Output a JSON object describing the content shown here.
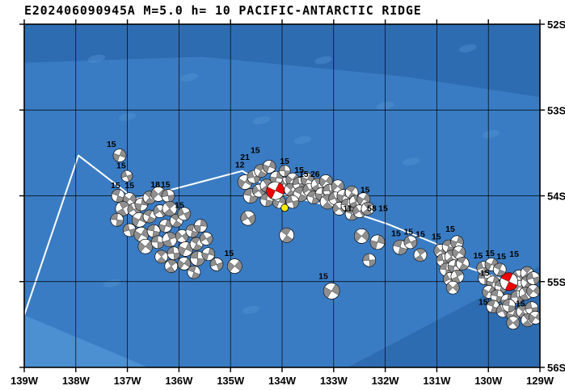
{
  "title": "E202406090945A M=5.0 h= 10 PACIFIC-ANTARCTIC RIDGE",
  "map": {
    "lon_labels": [
      "139W",
      "138W",
      "137W",
      "136W",
      "135W",
      "134W",
      "133W",
      "132W",
      "131W",
      "130W",
      "129W"
    ],
    "lon_degs": [
      139,
      138,
      137,
      136,
      135,
      134,
      133,
      132,
      131,
      130,
      129
    ],
    "lat_labels": [
      "52S",
      "53S",
      "54S",
      "55S",
      "56S"
    ],
    "lat_degs": [
      52,
      53,
      54,
      55,
      56
    ],
    "colors": {
      "ocean": "#3a7cc4",
      "ocean_dark": "#2e6cb2",
      "ocean_light": "#4c90d2",
      "blob": "#5a9ad8",
      "ball_fill": "#8f8f8f",
      "ball_highlight": "#ee0000",
      "station": "#ffee00",
      "boundary": "#ffffff",
      "grid": "#000000"
    },
    "bands": [
      {
        "color": "#2e6cb2",
        "pts": [
          [
            139,
            52
          ],
          [
            129,
            52
          ],
          [
            129,
            52.85
          ],
          [
            131.63,
            52.61
          ],
          [
            135.55,
            52.38
          ],
          [
            139,
            52.45
          ]
        ]
      },
      {
        "color": "#2e6cb2",
        "pts": [
          [
            132.73,
            56
          ],
          [
            129,
            56
          ],
          [
            129,
            54.82
          ]
        ]
      },
      {
        "color": "#4c90d2",
        "pts": [
          [
            139,
            56
          ],
          [
            139,
            55.39
          ],
          [
            136.6,
            56
          ]
        ]
      }
    ],
    "blobs": [
      [
        137.6,
        52.4
      ],
      [
        135.8,
        52.62
      ],
      [
        133.2,
        52.42
      ],
      [
        130.4,
        52.28
      ],
      [
        137.0,
        53.08
      ],
      [
        134.4,
        53.12
      ],
      [
        132.0,
        52.95
      ],
      [
        129.95,
        53.28
      ],
      [
        137.3,
        55.02
      ],
      [
        134.6,
        55.33
      ],
      [
        131.5,
        53.6
      ],
      [
        133.6,
        53.35
      ]
    ],
    "boundary_line": [
      [
        139.0,
        55.39
      ],
      [
        137.95,
        53.53
      ],
      [
        136.85,
        54.04
      ],
      [
        134.77,
        53.71
      ],
      [
        134.06,
        53.98
      ],
      [
        132.89,
        54.14
      ],
      [
        131.95,
        54.33
      ],
      [
        131.01,
        54.56
      ],
      [
        130.43,
        54.83
      ],
      [
        129.44,
        55.03
      ],
      [
        129.0,
        55.11
      ]
    ],
    "events": [
      [
        137.15,
        53.53,
        8,
        20
      ],
      [
        137.01,
        53.77,
        7,
        70
      ],
      [
        137.18,
        54.0,
        8,
        110
      ],
      [
        136.96,
        54.04,
        8,
        35
      ],
      [
        137.09,
        54.15,
        9,
        150
      ],
      [
        136.87,
        54.16,
        8,
        60
      ],
      [
        137.2,
        54.28,
        8,
        95
      ],
      [
        136.73,
        54.1,
        8,
        10
      ],
      [
        136.57,
        54.02,
        8,
        130
      ],
      [
        136.4,
        53.98,
        9,
        45
      ],
      [
        136.21,
        54.0,
        8,
        80
      ],
      [
        136.77,
        54.28,
        9,
        25
      ],
      [
        136.57,
        54.24,
        8,
        115
      ],
      [
        136.37,
        54.18,
        8,
        55
      ],
      [
        136.18,
        54.15,
        9,
        140
      ],
      [
        136.96,
        54.4,
        8,
        75
      ],
      [
        136.73,
        54.45,
        9,
        30
      ],
      [
        136.49,
        54.41,
        8,
        100
      ],
      [
        136.26,
        54.35,
        8,
        15
      ],
      [
        136.05,
        54.29,
        8,
        125
      ],
      [
        135.9,
        54.21,
        8,
        65
      ],
      [
        136.65,
        54.59,
        9,
        40
      ],
      [
        136.41,
        54.54,
        8,
        90
      ],
      [
        136.18,
        54.51,
        9,
        160
      ],
      [
        135.94,
        54.47,
        8,
        50
      ],
      [
        135.74,
        54.41,
        8,
        105
      ],
      [
        135.58,
        54.35,
        8,
        5
      ],
      [
        136.34,
        54.71,
        8,
        135
      ],
      [
        136.1,
        54.67,
        8,
        85
      ],
      [
        135.87,
        54.62,
        9,
        25
      ],
      [
        135.66,
        54.56,
        8,
        120
      ],
      [
        135.47,
        54.5,
        8,
        60
      ],
      [
        136.15,
        54.82,
        8,
        145
      ],
      [
        135.9,
        54.79,
        8,
        35
      ],
      [
        135.64,
        54.73,
        9,
        95
      ],
      [
        135.43,
        54.68,
        8,
        15
      ],
      [
        135.71,
        54.89,
        8,
        110
      ],
      [
        135.27,
        54.8,
        8,
        70
      ],
      [
        134.92,
        54.82,
        9,
        40
      ],
      [
        134.72,
        53.84,
        9,
        30
      ],
      [
        134.55,
        53.78,
        8,
        75
      ],
      [
        134.41,
        53.71,
        8,
        120
      ],
      [
        134.25,
        53.66,
        8,
        20
      ],
      [
        134.61,
        54.0,
        9,
        100
      ],
      [
        134.45,
        53.94,
        8,
        55
      ],
      [
        134.3,
        53.88,
        8,
        145
      ],
      [
        133.95,
        53.86,
        8,
        65
      ],
      [
        134.11,
        53.79,
        8,
        10
      ],
      [
        133.95,
        53.71,
        7,
        90
      ],
      [
        133.8,
        53.81,
        8,
        40
      ],
      [
        133.83,
        53.93,
        8,
        130
      ],
      [
        133.67,
        53.86,
        8,
        80
      ],
      [
        133.51,
        53.81,
        8,
        25
      ],
      [
        133.64,
        53.98,
        9,
        115
      ],
      [
        133.47,
        53.93,
        8,
        60
      ],
      [
        133.31,
        53.87,
        8,
        150
      ],
      [
        133.15,
        53.83,
        8,
        35
      ],
      [
        133.39,
        54.02,
        8,
        105
      ],
      [
        133.23,
        53.98,
        8,
        5
      ],
      [
        133.08,
        53.94,
        8,
        85
      ],
      [
        132.92,
        53.89,
        8,
        45
      ],
      [
        133.12,
        54.07,
        9,
        135
      ],
      [
        132.97,
        54.03,
        8,
        70
      ],
      [
        132.81,
        54.0,
        8,
        15
      ],
      [
        132.65,
        53.96,
        8,
        125
      ],
      [
        132.89,
        54.15,
        8,
        50
      ],
      [
        132.73,
        54.11,
        8,
        95
      ],
      [
        132.57,
        54.07,
        8,
        160
      ],
      [
        132.42,
        54.04,
        8,
        30
      ],
      [
        132.65,
        54.21,
        8,
        110
      ],
      [
        132.5,
        54.18,
        8,
        55
      ],
      [
        132.34,
        54.15,
        8,
        140
      ],
      [
        133.8,
        54.07,
        8,
        75
      ],
      [
        134.06,
        54.07,
        8,
        20
      ],
      [
        134.3,
        54.05,
        8,
        100
      ],
      [
        134.66,
        54.26,
        9,
        60
      ],
      [
        133.91,
        54.46,
        9,
        125
      ],
      [
        132.46,
        54.47,
        9,
        40
      ],
      [
        132.31,
        54.75,
        8,
        85
      ],
      [
        132.15,
        54.54,
        9,
        15
      ],
      [
        131.71,
        54.6,
        9,
        105
      ],
      [
        131.51,
        54.54,
        8,
        65
      ],
      [
        131.32,
        54.69,
        8,
        145
      ],
      [
        133.04,
        55.11,
        10,
        30
      ],
      [
        130.93,
        54.64,
        8,
        50
      ],
      [
        130.77,
        54.59,
        8,
        110
      ],
      [
        130.61,
        54.54,
        8,
        20
      ],
      [
        130.88,
        54.75,
        8,
        80
      ],
      [
        130.72,
        54.71,
        8,
        140
      ],
      [
        130.57,
        54.66,
        8,
        35
      ],
      [
        130.82,
        54.86,
        8,
        95
      ],
      [
        130.66,
        54.82,
        8,
        10
      ],
      [
        130.5,
        54.79,
        8,
        120
      ],
      [
        130.75,
        54.97,
        8,
        60
      ],
      [
        130.6,
        54.94,
        8,
        155
      ],
      [
        130.69,
        55.07,
        8,
        45
      ],
      [
        130.1,
        54.84,
        8,
        70
      ],
      [
        129.94,
        54.8,
        8,
        25
      ],
      [
        129.78,
        54.86,
        8,
        115
      ],
      [
        129.41,
        54.94,
        8,
        55
      ],
      [
        129.25,
        54.9,
        8,
        135
      ],
      [
        130.07,
        54.96,
        8,
        90
      ],
      [
        129.91,
        55.01,
        8,
        15
      ],
      [
        129.75,
        55.06,
        8,
        105
      ],
      [
        129.39,
        55.06,
        8,
        45
      ],
      [
        129.24,
        55.01,
        8,
        125
      ],
      [
        129.13,
        54.96,
        8,
        75
      ],
      [
        129.99,
        55.12,
        8,
        30
      ],
      [
        129.83,
        55.17,
        8,
        100
      ],
      [
        129.63,
        55.22,
        8,
        5
      ],
      [
        129.44,
        55.18,
        8,
        85
      ],
      [
        129.28,
        55.14,
        8,
        150
      ],
      [
        129.13,
        55.11,
        8,
        40
      ],
      [
        129.91,
        55.29,
        8,
        110
      ],
      [
        129.72,
        55.34,
        8,
        65
      ],
      [
        129.52,
        55.39,
        8,
        20
      ],
      [
        129.33,
        55.35,
        8,
        130
      ],
      [
        129.16,
        55.31,
        8,
        80
      ],
      [
        129.52,
        55.48,
        8,
        50
      ],
      [
        129.24,
        55.45,
        8,
        140
      ],
      [
        129.09,
        55.42,
        8,
        35
      ],
      [
        129.6,
        55.28,
        8,
        95
      ]
    ],
    "highlighted_events": [
      [
        134.13,
        53.94,
        11,
        25
      ],
      [
        129.6,
        55.0,
        11,
        115
      ]
    ],
    "station_marker": [
      133.95,
      54.14
    ],
    "depth_labels": [
      [
        "15",
        137.31,
        53.43
      ],
      [
        "15",
        137.12,
        53.68
      ],
      [
        "15",
        137.23,
        53.91
      ],
      [
        "15",
        136.96,
        53.91
      ],
      [
        "18",
        136.46,
        53.9
      ],
      [
        "15",
        136.26,
        53.9
      ],
      [
        "15",
        135.99,
        54.14
      ],
      [
        "15",
        135.03,
        54.7
      ],
      [
        "15",
        134.52,
        53.5
      ],
      [
        "21",
        134.72,
        53.58
      ],
      [
        "12",
        134.82,
        53.67
      ],
      [
        "15",
        133.95,
        53.63
      ],
      [
        "15",
        133.67,
        53.73
      ],
      [
        "15",
        133.58,
        53.78
      ],
      [
        "26",
        133.36,
        53.78
      ],
      [
        "15",
        132.39,
        53.96
      ],
      [
        "58",
        132.26,
        54.18
      ],
      [
        "15",
        132.04,
        54.18
      ],
      [
        "11",
        132.73,
        54.18
      ],
      [
        "15",
        131.79,
        54.47
      ],
      [
        "15",
        131.55,
        54.45
      ],
      [
        "15",
        131.32,
        54.48
      ],
      [
        "15",
        131.01,
        54.51
      ],
      [
        "15",
        130.74,
        54.42
      ],
      [
        "15",
        133.2,
        54.97
      ],
      [
        "15",
        130.2,
        54.73
      ],
      [
        "15",
        129.97,
        54.7
      ],
      [
        "15",
        129.75,
        54.74
      ],
      [
        "15",
        129.5,
        54.71
      ],
      [
        "15",
        130.07,
        54.93
      ],
      [
        "15",
        130.1,
        55.27
      ],
      [
        "15",
        129.38,
        55.29
      ]
    ]
  }
}
